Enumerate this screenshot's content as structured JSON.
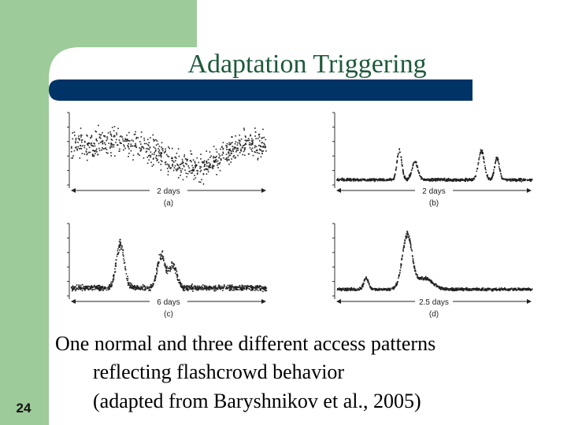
{
  "slide": {
    "title": "Adaptation Triggering",
    "figure": {
      "panels": [
        {
          "axis_label": "2 days",
          "panel_label": "(a)"
        },
        {
          "axis_label": "2 days",
          "panel_label": "(b)"
        },
        {
          "axis_label": "6 days",
          "panel_label": "(c)"
        },
        {
          "axis_label": "2.5 days",
          "panel_label": "(d)"
        }
      ]
    },
    "caption": [
      "One normal and three different access patterns",
      "reflecting flashcrowd behavior",
      "(adapted from Baryshnikov et al., 2005)"
    ],
    "slide_number": "24"
  }
}
